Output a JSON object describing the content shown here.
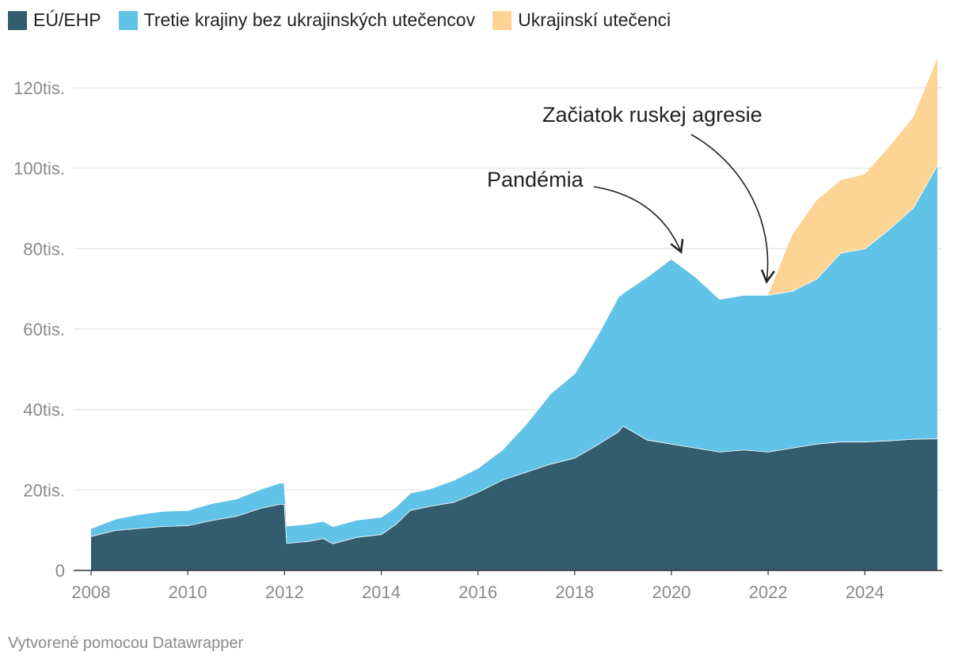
{
  "chart_data": {
    "type": "area",
    "stacked": true,
    "x_unit": "year",
    "xlim": [
      2008,
      2025.6
    ],
    "ylim": [
      0,
      130000
    ],
    "yticks": [
      {
        "value": 0,
        "label": "0"
      },
      {
        "value": 20000,
        "label": "20tis."
      },
      {
        "value": 40000,
        "label": "40tis."
      },
      {
        "value": 60000,
        "label": "60tis."
      },
      {
        "value": 80000,
        "label": "80tis."
      },
      {
        "value": 100000,
        "label": "100tis."
      },
      {
        "value": 120000,
        "label": "120tis."
      }
    ],
    "xticks": [
      {
        "value": 2008,
        "label": "2008"
      },
      {
        "value": 2010,
        "label": "2010"
      },
      {
        "value": 2012,
        "label": "2012"
      },
      {
        "value": 2014,
        "label": "2014"
      },
      {
        "value": 2016,
        "label": "2016"
      },
      {
        "value": 2018,
        "label": "2018"
      },
      {
        "value": 2020,
        "label": "2020"
      },
      {
        "value": 2022,
        "label": "2022"
      },
      {
        "value": 2024,
        "label": "2024"
      }
    ],
    "series": [
      {
        "name": "EÚ/EHP",
        "color": "#345c6f",
        "points": [
          [
            2008.0,
            8500
          ],
          [
            2008.5,
            10000
          ],
          [
            2009.0,
            10500
          ],
          [
            2009.5,
            11000
          ],
          [
            2010.0,
            11200
          ],
          [
            2010.5,
            12500
          ],
          [
            2011.0,
            13500
          ],
          [
            2011.5,
            15500
          ],
          [
            2011.9,
            16500
          ],
          [
            2012.0,
            16500
          ],
          [
            2012.05,
            6800
          ],
          [
            2012.5,
            7300
          ],
          [
            2012.8,
            8000
          ],
          [
            2013.0,
            6700
          ],
          [
            2013.5,
            8300
          ],
          [
            2014.0,
            9000
          ],
          [
            2014.3,
            11500
          ],
          [
            2014.6,
            15000
          ],
          [
            2015.0,
            16000
          ],
          [
            2015.5,
            17000
          ],
          [
            2016.0,
            19500
          ],
          [
            2016.5,
            22500
          ],
          [
            2017.0,
            24500
          ],
          [
            2017.5,
            26500
          ],
          [
            2018.0,
            28000
          ],
          [
            2018.5,
            31500
          ],
          [
            2018.9,
            34500
          ],
          [
            2019.0,
            36000
          ],
          [
            2019.5,
            32500
          ],
          [
            2020.0,
            31500
          ],
          [
            2020.5,
            30500
          ],
          [
            2021.0,
            29500
          ],
          [
            2021.5,
            30000
          ],
          [
            2022.0,
            29500
          ],
          [
            2022.5,
            30500
          ],
          [
            2023.0,
            31500
          ],
          [
            2023.5,
            32000
          ],
          [
            2024.0,
            32000
          ],
          [
            2024.5,
            32300
          ],
          [
            2025.0,
            32700
          ],
          [
            2025.5,
            32800
          ]
        ]
      },
      {
        "name": "Tretie krajiny bez ukrajinských utečencov",
        "color": "#62c3e8",
        "points": [
          [
            2008.0,
            2000
          ],
          [
            2008.5,
            2800
          ],
          [
            2009.0,
            3500
          ],
          [
            2009.5,
            3800
          ],
          [
            2010.0,
            3800
          ],
          [
            2010.5,
            4200
          ],
          [
            2011.0,
            4300
          ],
          [
            2011.5,
            4700
          ],
          [
            2011.9,
            5300
          ],
          [
            2012.0,
            5300
          ],
          [
            2012.05,
            4300
          ],
          [
            2012.5,
            4300
          ],
          [
            2012.8,
            4300
          ],
          [
            2013.0,
            4300
          ],
          [
            2013.5,
            4300
          ],
          [
            2014.0,
            4300
          ],
          [
            2014.3,
            4300
          ],
          [
            2014.6,
            4300
          ],
          [
            2015.0,
            4300
          ],
          [
            2015.5,
            5500
          ],
          [
            2016.0,
            6000
          ],
          [
            2016.5,
            7500
          ],
          [
            2017.0,
            12000
          ],
          [
            2017.5,
            17500
          ],
          [
            2018.0,
            21000
          ],
          [
            2018.5,
            27500
          ],
          [
            2018.9,
            33500
          ],
          [
            2019.0,
            33000
          ],
          [
            2019.5,
            40500
          ],
          [
            2020.0,
            46000
          ],
          [
            2020.5,
            42500
          ],
          [
            2021.0,
            38000
          ],
          [
            2021.5,
            38500
          ],
          [
            2022.0,
            39000
          ],
          [
            2022.5,
            39000
          ],
          [
            2023.0,
            41000
          ],
          [
            2023.5,
            47000
          ],
          [
            2024.0,
            48000
          ],
          [
            2024.5,
            52500
          ],
          [
            2025.0,
            57500
          ],
          [
            2025.5,
            68000
          ]
        ]
      },
      {
        "name": "Ukrajinskí utečenci",
        "color": "#fdd494",
        "points": [
          [
            2008.0,
            0
          ],
          [
            2008.5,
            0
          ],
          [
            2009.0,
            0
          ],
          [
            2009.5,
            0
          ],
          [
            2010.0,
            0
          ],
          [
            2010.5,
            0
          ],
          [
            2011.0,
            0
          ],
          [
            2011.5,
            0
          ],
          [
            2011.9,
            0
          ],
          [
            2012.0,
            0
          ],
          [
            2012.05,
            0
          ],
          [
            2012.5,
            0
          ],
          [
            2012.8,
            0
          ],
          [
            2013.0,
            0
          ],
          [
            2013.5,
            0
          ],
          [
            2014.0,
            0
          ],
          [
            2014.3,
            0
          ],
          [
            2014.6,
            0
          ],
          [
            2015.0,
            0
          ],
          [
            2015.5,
            0
          ],
          [
            2016.0,
            0
          ],
          [
            2016.5,
            0
          ],
          [
            2017.0,
            0
          ],
          [
            2017.5,
            0
          ],
          [
            2018.0,
            0
          ],
          [
            2018.5,
            0
          ],
          [
            2018.9,
            0
          ],
          [
            2019.0,
            0
          ],
          [
            2019.5,
            0
          ],
          [
            2020.0,
            0
          ],
          [
            2020.5,
            0
          ],
          [
            2021.0,
            0
          ],
          [
            2021.5,
            0
          ],
          [
            2022.0,
            0
          ],
          [
            2022.5,
            14000
          ],
          [
            2023.0,
            19500
          ],
          [
            2023.5,
            18000
          ],
          [
            2024.0,
            18500
          ],
          [
            2024.5,
            20500
          ],
          [
            2025.0,
            22500
          ],
          [
            2025.5,
            26500
          ]
        ]
      }
    ],
    "annotations": [
      {
        "text": "Pandémia",
        "x": 2020.2,
        "y": 78000
      },
      {
        "text": "Začiatok ruskej agresie",
        "x": 2022.1,
        "y": 71000
      }
    ]
  },
  "legend": [
    {
      "label": "EÚ/EHP",
      "color": "#345c6f"
    },
    {
      "label": "Tretie krajiny bez ukrajinských utečencov",
      "color": "#62c3e8"
    },
    {
      "label": "Ukrajinskí utečenci",
      "color": "#fdd494"
    }
  ],
  "credit": "Vytvorené pomocou Datawrapper"
}
